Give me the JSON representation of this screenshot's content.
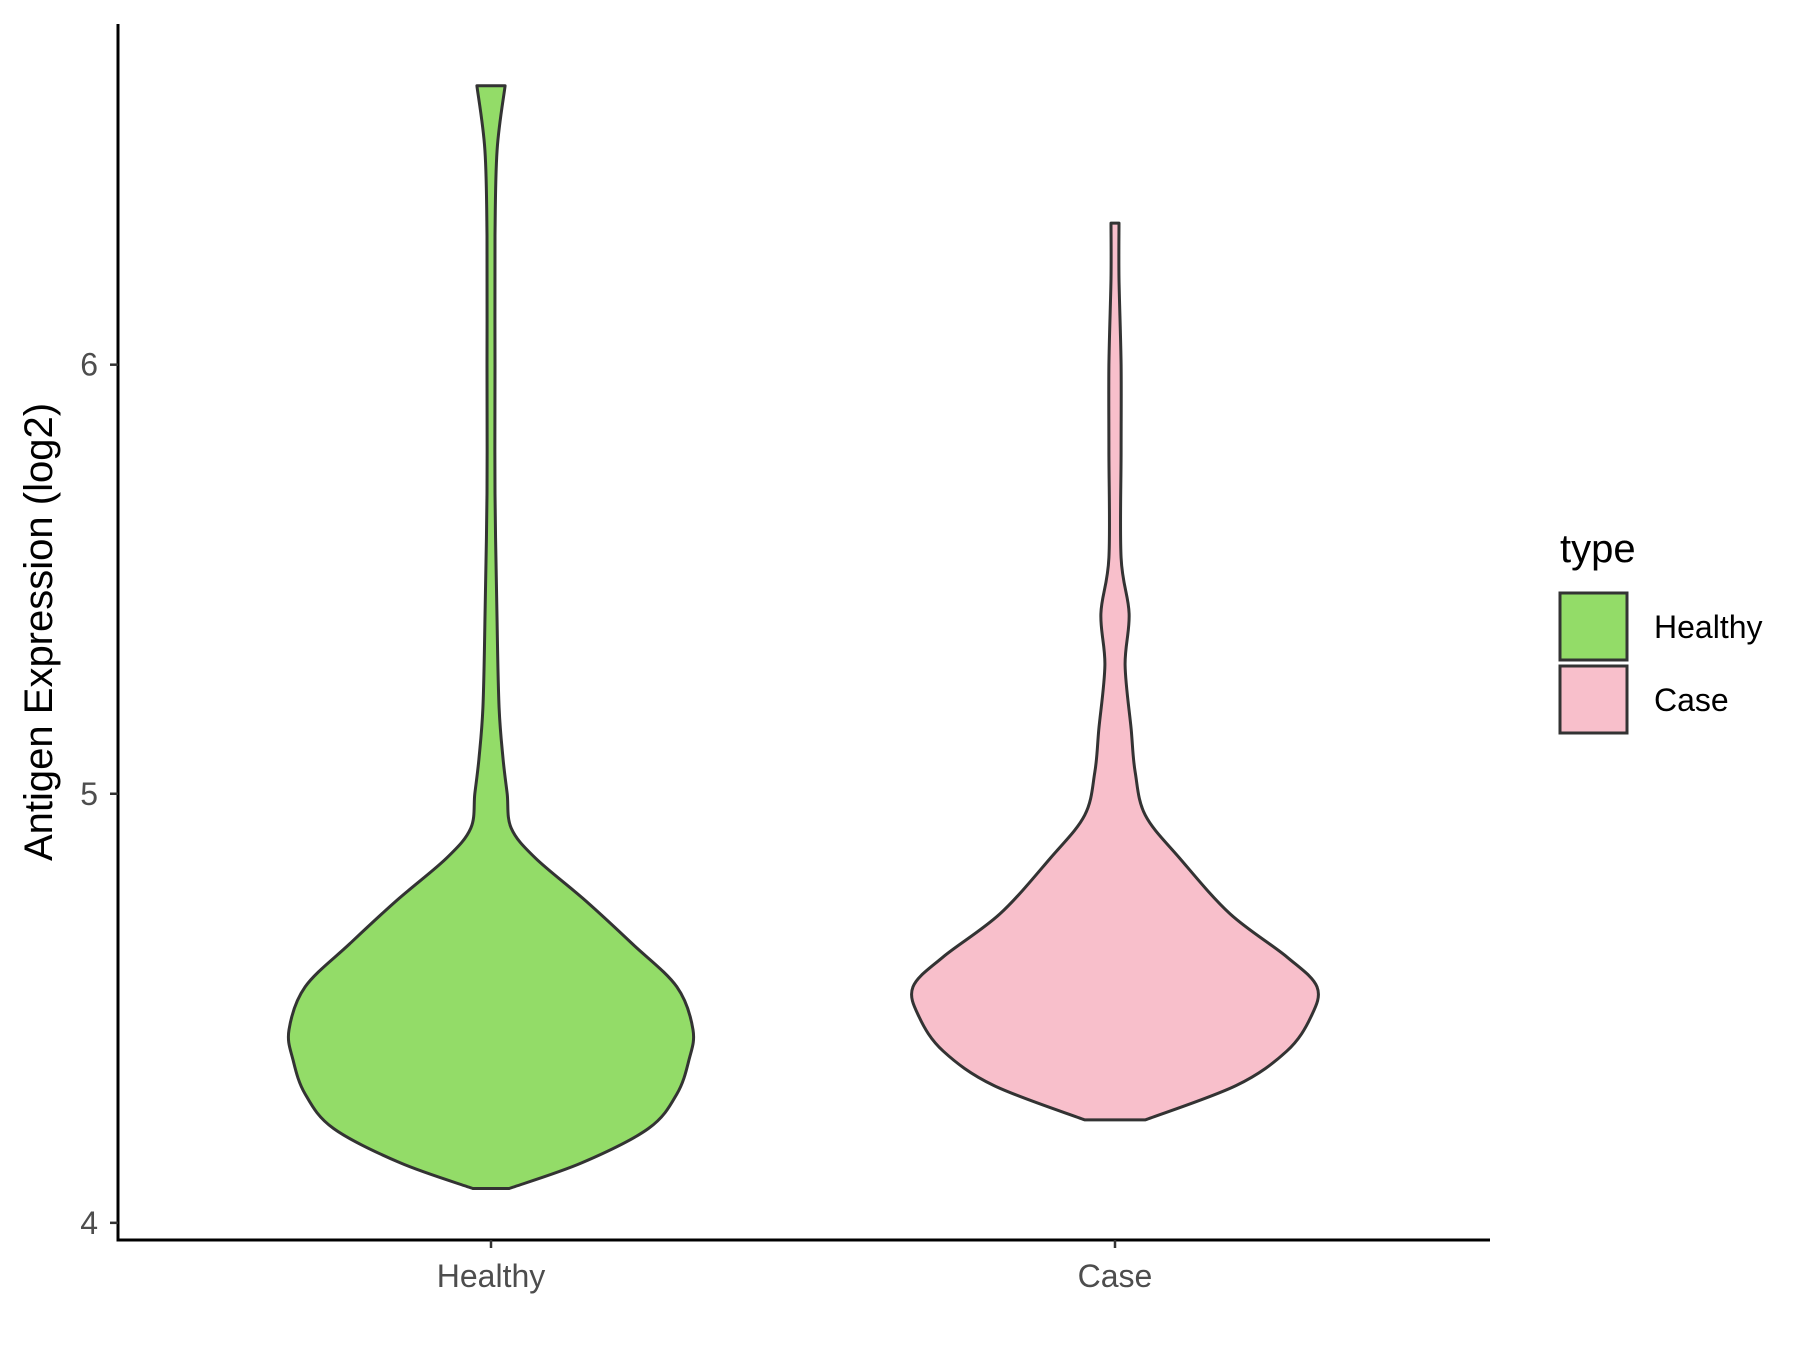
{
  "chart_data": {
    "type": "violin",
    "ylabel": "Antigen Expression (log2)",
    "xlabel": "",
    "ylim": [
      3.96,
      6.78
    ],
    "yticks": [
      4,
      5,
      6
    ],
    "grid": false,
    "legend": {
      "title": "type",
      "placement": "right",
      "entries": [
        {
          "label": "Healthy",
          "color": "#93dc68"
        },
        {
          "label": "Case",
          "color": "#f8bfcb"
        }
      ]
    },
    "categories": [
      "Healthy",
      "Case"
    ],
    "series": [
      {
        "name": "Healthy",
        "color": "#93dc68",
        "min": 4.08,
        "max": 6.65,
        "density": [
          [
            4.08,
            0.09
          ],
          [
            4.14,
            0.45
          ],
          [
            4.22,
            0.78
          ],
          [
            4.3,
            0.92
          ],
          [
            4.38,
            0.98
          ],
          [
            4.45,
            1.0
          ],
          [
            4.55,
            0.92
          ],
          [
            4.65,
            0.7
          ],
          [
            4.75,
            0.47
          ],
          [
            4.85,
            0.22
          ],
          [
            4.92,
            0.1
          ],
          [
            5.0,
            0.08
          ],
          [
            5.08,
            0.06
          ],
          [
            5.2,
            0.04
          ],
          [
            5.4,
            0.03
          ],
          [
            5.7,
            0.02
          ],
          [
            6.0,
            0.02
          ],
          [
            6.3,
            0.02
          ],
          [
            6.5,
            0.03
          ],
          [
            6.65,
            0.07
          ]
        ]
      },
      {
        "name": "Case",
        "color": "#f8bfcb",
        "min": 4.24,
        "max": 6.33,
        "density": [
          [
            4.24,
            0.15
          ],
          [
            4.32,
            0.6
          ],
          [
            4.4,
            0.85
          ],
          [
            4.48,
            0.97
          ],
          [
            4.55,
            1.0
          ],
          [
            4.62,
            0.85
          ],
          [
            4.72,
            0.57
          ],
          [
            4.85,
            0.32
          ],
          [
            4.95,
            0.15
          ],
          [
            5.05,
            0.1
          ],
          [
            5.15,
            0.08
          ],
          [
            5.3,
            0.05
          ],
          [
            5.42,
            0.07
          ],
          [
            5.55,
            0.03
          ],
          [
            5.8,
            0.03
          ],
          [
            6.0,
            0.03
          ],
          [
            6.2,
            0.02
          ],
          [
            6.33,
            0.02
          ]
        ]
      }
    ]
  }
}
